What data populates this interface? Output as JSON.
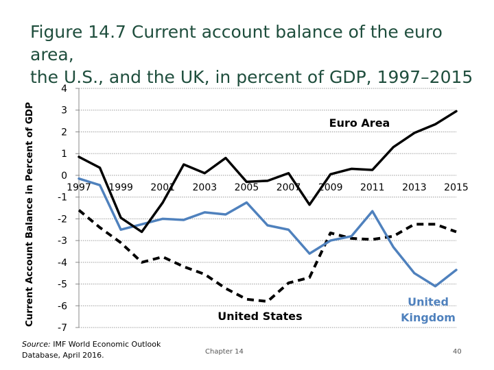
{
  "slide": {
    "title_line1": "Figure 14.7 Current account balance of the euro area,",
    "title_line2": "the U.S., and the UK, in percent of GDP, 1997–2015",
    "source_label": "Source:",
    "source_text": " IMF World Economic Outlook Database, April 2016.",
    "footer_center": "Chapter 14",
    "page_number": "40"
  },
  "chart_data": {
    "type": "line",
    "title": "",
    "xlabel": "",
    "ylabel": "Current Account Balance in Percent of GDP",
    "x": [
      1997,
      1998,
      1999,
      2000,
      2001,
      2002,
      2003,
      2004,
      2005,
      2006,
      2007,
      2008,
      2009,
      2010,
      2011,
      2012,
      2013,
      2014,
      2015
    ],
    "x_tick_labels": [
      "1997",
      "1999",
      "2001",
      "2003",
      "2005",
      "2007",
      "2009",
      "2011",
      "2013",
      "2015"
    ],
    "y_tick_labels": [
      "4",
      "3",
      "2",
      "1",
      "0",
      "-1",
      "-2",
      "-3",
      "-4",
      "-5",
      "-6",
      "-7"
    ],
    "ylim": [
      -7,
      4
    ],
    "grid": true,
    "series": [
      {
        "name": "Euro Area",
        "style": "solid",
        "color": "#000000",
        "values": [
          0.85,
          0.35,
          -1.95,
          -2.6,
          -1.25,
          0.5,
          0.1,
          0.8,
          -0.3,
          -0.25,
          0.1,
          -1.35,
          0.05,
          0.3,
          0.25,
          1.3,
          1.95,
          2.35,
          2.95
        ]
      },
      {
        "name": "United States",
        "style": "dashed",
        "color": "#000000",
        "values": [
          -1.6,
          -2.4,
          -3.1,
          -4.0,
          -3.75,
          -4.2,
          -4.55,
          -5.2,
          -5.7,
          -5.8,
          -4.95,
          -4.7,
          -2.65,
          -2.9,
          -2.95,
          -2.8,
          -2.25,
          -2.25,
          -2.6
        ]
      },
      {
        "name": "United Kingdom",
        "style": "solid",
        "color": "#4f81bd",
        "values": [
          -0.15,
          -0.45,
          -2.5,
          -2.25,
          -2.0,
          -2.05,
          -1.7,
          -1.8,
          -1.25,
          -2.3,
          -2.5,
          -3.6,
          -3.0,
          -2.8,
          -1.65,
          -3.3,
          -4.5,
          -5.1,
          -4.35
        ]
      }
    ],
    "annotations": [
      {
        "series": "Euro Area",
        "text": "Euro Area"
      },
      {
        "series": "United States",
        "text": "United States"
      },
      {
        "series": "United Kingdom",
        "text_line1": "United",
        "text_line2": "Kingdom"
      }
    ]
  }
}
